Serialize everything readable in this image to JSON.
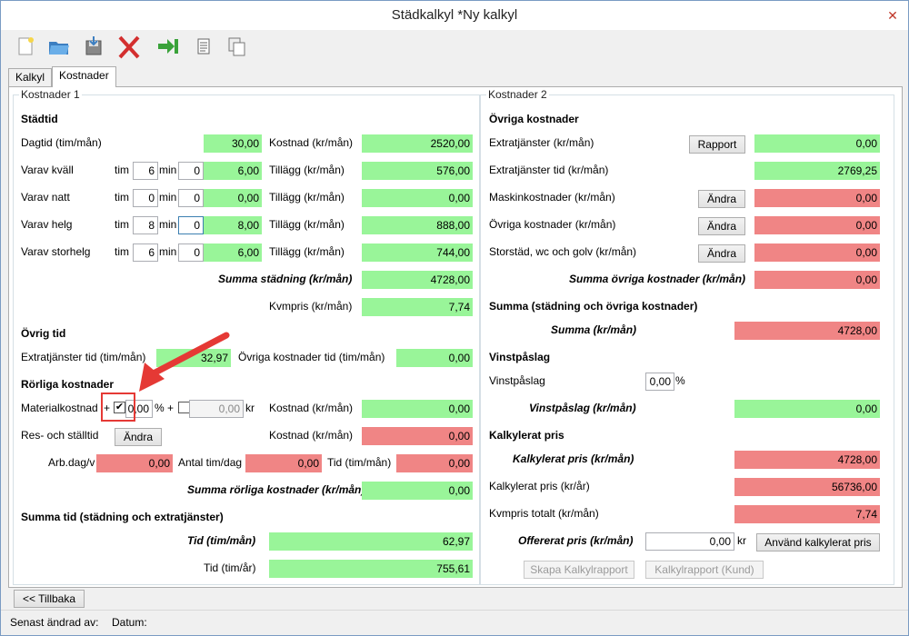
{
  "window": {
    "title": "Städkalkyl *Ny kalkyl",
    "close_symbol": "✕"
  },
  "toolbar": {
    "icons": [
      "new-document-icon",
      "open-folder-icon",
      "save-icon",
      "delete-icon",
      "exit-icon",
      "document-icon",
      "copy-icon"
    ]
  },
  "tabs": [
    {
      "label": "Kalkyl",
      "active": false
    },
    {
      "label": "Kostnader",
      "active": true
    }
  ],
  "left": {
    "group_title": "Kostnader 1",
    "stadtid": {
      "heading": "Städtid",
      "dagtid_label": "Dagtid (tim/mån)",
      "dagtid_value": "30,00",
      "kostnad_label": "Kostnad (kr/mån)",
      "kostnad_value": "2520,00",
      "tim_label": "tim",
      "min_label": "min",
      "tillagg_label": "Tillägg (kr/mån)",
      "rows": [
        {
          "label": "Varav kväll",
          "tim": "6",
          "min": "0",
          "hours": "6,00",
          "tillagg": "576,00"
        },
        {
          "label": "Varav natt",
          "tim": "0",
          "min": "0",
          "hours": "0,00",
          "tillagg": "0,00"
        },
        {
          "label": "Varav helg",
          "tim": "8",
          "min": "0",
          "hours": "8,00",
          "tillagg": "888,00"
        },
        {
          "label": "Varav storhelg",
          "tim": "6",
          "min": "0",
          "hours": "6,00",
          "tillagg": "744,00"
        }
      ],
      "summa_label": "Summa städning (kr/mån)",
      "summa_value": "4728,00",
      "kvmpris_label": "Kvmpris (kr/mån)",
      "kvmpris_value": "7,74"
    },
    "ovrig_tid": {
      "heading": "Övrig tid",
      "extra_label": "Extratjänster tid (tim/mån)",
      "extra_value": "32,97",
      "ovriga_label": "Övriga kostnader tid (tim/mån)",
      "ovriga_value": "0,00"
    },
    "rorliga": {
      "heading": "Rörliga kostnader",
      "material_label": "Materialkostnad",
      "plus1": "+",
      "checkbox_checked": true,
      "percent_value": "0,00",
      "percent_sign": "%",
      "plus2": "+",
      "checkbox2_checked": false,
      "kr_value": "0,00",
      "kr_label": "kr",
      "kostnad_label": "Kostnad (kr/mån)",
      "material_kostnad": "0,00",
      "res_label": "Res- och ställtid",
      "andra_label": "Ändra",
      "res_kostnad": "0,00",
      "arbdag_label": "Arb.dag/v",
      "arbdag_value": "0,00",
      "antal_label": "Antal tim/dag",
      "antal_value": "0,00",
      "tid_label": "Tid (tim/mån)",
      "tid_value": "0,00",
      "summa_label": "Summa rörliga kostnader (kr/mån)",
      "summa_value": "0,00"
    },
    "summa_tid": {
      "heading": "Summa tid (städning och extratjänster)",
      "tid_man_label": "Tid (tim/mån)",
      "tid_man_value": "62,97",
      "tid_ar_label": "Tid (tim/år)",
      "tid_ar_value": "755,61"
    }
  },
  "right": {
    "group_title": "Kostnader 2",
    "ovriga": {
      "heading": "Övriga kostnader",
      "rows": [
        {
          "label": "Extratjänster (kr/mån)",
          "button": "Rapport",
          "value": "0,00",
          "color": "g"
        },
        {
          "label": "Extratjänster tid (kr/mån)",
          "button": "",
          "value": "2769,25",
          "color": "g"
        },
        {
          "label": "Maskinkostnader (kr/mån)",
          "button": "Ändra",
          "value": "0,00",
          "color": "r"
        },
        {
          "label": "Övriga kostnader (kr/mån)",
          "button": "Ändra",
          "value": "0,00",
          "color": "r"
        },
        {
          "label": "Storstäd, wc och golv (kr/mån)",
          "button": "Ändra",
          "value": "0,00",
          "color": "r"
        }
      ],
      "summa_label": "Summa övriga kostnader (kr/mån)",
      "summa_value": "0,00"
    },
    "summa_all": {
      "heading": "Summa (städning och övriga kostnader)",
      "label": "Summa (kr/mån)",
      "value": "4728,00"
    },
    "vinst": {
      "heading": "Vinstpåslag",
      "label": "Vinstpåslag",
      "input_value": "0,00",
      "percent_sign": "%",
      "result_label": "Vinstpåslag (kr/mån)",
      "result_value": "0,00"
    },
    "kalkylerat": {
      "heading": "Kalkylerat pris",
      "pris_man_label": "Kalkylerat pris (kr/mån)",
      "pris_man_value": "4728,00",
      "pris_ar_label": "Kalkylerat pris (kr/år)",
      "pris_ar_value": "56736,00",
      "kvm_label": "Kvmpris totalt (kr/mån)",
      "kvm_value": "7,74",
      "offer_label": "Offererat pris (kr/mån)",
      "offer_value": "0,00",
      "offer_unit": "kr",
      "use_button": "Använd kalkylerat pris",
      "report_button": "Skapa Kalkylrapport",
      "report_kund_button": "Kalkylrapport (Kund)"
    }
  },
  "back_button": "<< Tillbaka",
  "status": {
    "changed_by": "Senast ändrad av:",
    "date": "Datum:"
  },
  "colors": {
    "green_field": "#99f599",
    "red_field": "#f08585",
    "annotation_red": "#e53935"
  }
}
